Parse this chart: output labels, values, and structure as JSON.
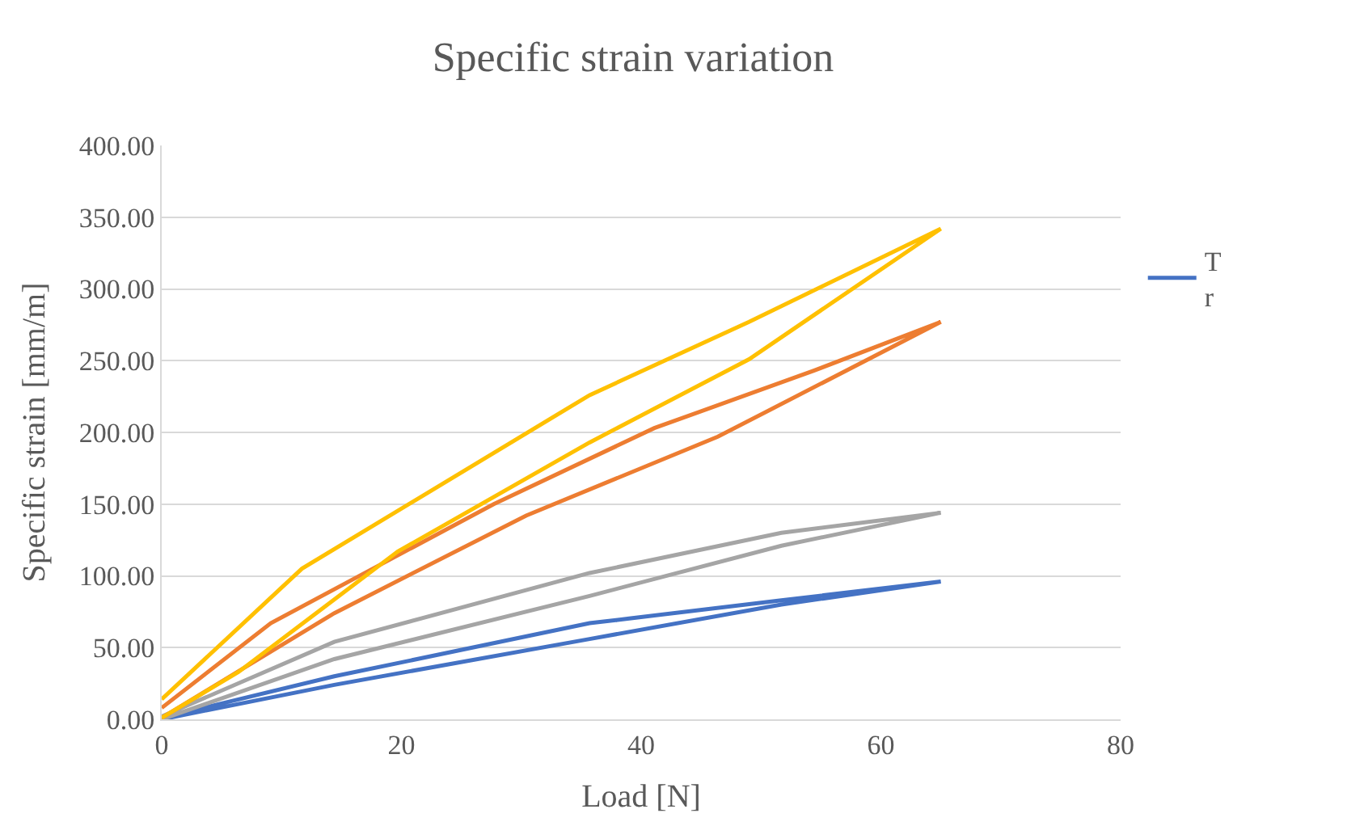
{
  "chart_data": {
    "type": "line",
    "title": "Specific strain variation",
    "xlabel": "Load [N]",
    "ylabel": "Specific strain [mm/m]",
    "xlim": [
      0,
      80
    ],
    "xticks": [
      0,
      20,
      40,
      60,
      80
    ],
    "ylim": [
      0,
      400
    ],
    "yticks": [
      {
        "value": 0,
        "label": "0.00"
      },
      {
        "value": 50,
        "label": "50.00"
      },
      {
        "value": 100,
        "label": "100.00"
      },
      {
        "value": 150,
        "label": "150.00"
      },
      {
        "value": 200,
        "label": "200.00"
      },
      {
        "value": 250,
        "label": "250.00"
      },
      {
        "value": 300,
        "label": "300.00"
      },
      {
        "value": 350,
        "label": "350.00"
      },
      {
        "value": 400,
        "label": "400.00"
      }
    ],
    "grid": "y",
    "legend": "right",
    "marker": "none",
    "line_style": "solid",
    "series": [
      {
        "name": "T\nr",
        "color": "#4472c4",
        "x": [
          0,
          14.4,
          35.7,
          51.7,
          65,
          51.7,
          35.7,
          14.4,
          0
        ],
        "values": [
          0,
          24,
          56,
          80,
          96,
          83,
          67,
          30,
          1
        ]
      },
      {
        "color": "#a5a5a5",
        "x": [
          0,
          14.4,
          35.7,
          51.7,
          65,
          51.7,
          35.7,
          14.4,
          0
        ],
        "values": [
          0,
          42,
          86,
          121,
          144,
          130,
          102,
          54,
          2
        ]
      },
      {
        "color": "#ed7d31",
        "x": [
          0,
          14.4,
          30.4,
          46.4,
          65,
          54.4,
          41.1,
          27.7,
          9.1,
          0
        ],
        "values": [
          1,
          74,
          142,
          197,
          277,
          243,
          203,
          150,
          67,
          8
        ]
      },
      {
        "color": "#ffc000",
        "x": [
          0,
          6.4,
          19.7,
          35.7,
          49,
          65,
          49,
          35.7,
          22.4,
          11.7,
          0
        ],
        "values": [
          1,
          33,
          117,
          193,
          251,
          342,
          277,
          226,
          159,
          105,
          14
        ]
      }
    ]
  }
}
